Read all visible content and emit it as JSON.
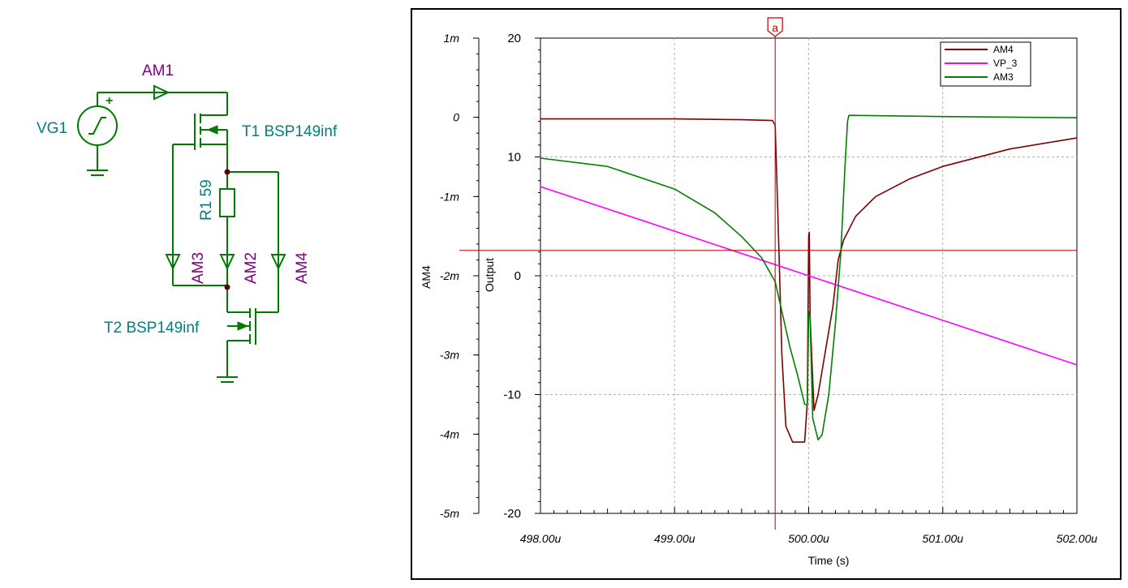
{
  "schematic": {
    "labels": {
      "am1": "AM1",
      "vg1": "VG1",
      "plus": "+",
      "t1": "T1 BSP149inf",
      "r1": "R1 59",
      "am3": "AM3",
      "am2": "AM2",
      "am4": "AM4",
      "t2": "T2 BSP149inf"
    },
    "colors": {
      "wire": "#007a00",
      "meter_label": "#800080",
      "part_label": "#008080"
    }
  },
  "chart_data": {
    "type": "line",
    "xlabel": "Time (s)",
    "x_ticks": [
      "498.00u",
      "499.00u",
      "500.00u",
      "501.00u",
      "502.00u"
    ],
    "x_range_us": [
      498,
      502
    ],
    "left_axis": {
      "label": "AM4",
      "ticks": [
        "1m",
        "0",
        "-1m",
        "-2m",
        "-3m",
        "-4m",
        "-5m"
      ],
      "range": [
        -0.005,
        0.001
      ]
    },
    "right_axis": {
      "label": "Output",
      "ticks": [
        "20",
        "10",
        "0",
        "-10",
        "-20"
      ],
      "range": [
        -20,
        20
      ]
    },
    "cursor": {
      "label": "a",
      "x_us": 499.75,
      "y_AM4": -0.00168
    },
    "grid": true,
    "legend_position": "top-right",
    "series": [
      {
        "name": "AM4",
        "color": "#800000",
        "axis": "left",
        "points": [
          [
            498.0,
            -2e-05
          ],
          [
            499.0,
            -2e-05
          ],
          [
            499.5,
            -3e-05
          ],
          [
            499.73,
            -4e-05
          ],
          [
            499.75,
            -0.0001
          ],
          [
            499.77,
            -0.0012
          ],
          [
            499.8,
            -0.003
          ],
          [
            499.83,
            -0.0039
          ],
          [
            499.88,
            -0.0041
          ],
          [
            499.93,
            -0.0041
          ],
          [
            499.97,
            -0.0041
          ],
          [
            499.99,
            -0.0036
          ],
          [
            500.0,
            -0.0015
          ],
          [
            500.005,
            -0.00145
          ],
          [
            500.01,
            -0.0025
          ],
          [
            500.04,
            -0.0037
          ],
          [
            500.07,
            -0.0035
          ],
          [
            500.12,
            -0.003
          ],
          [
            500.18,
            -0.0024
          ],
          [
            500.22,
            -0.0018
          ],
          [
            500.26,
            -0.00155
          ],
          [
            500.35,
            -0.00125
          ],
          [
            500.5,
            -0.001
          ],
          [
            500.75,
            -0.00078
          ],
          [
            501.0,
            -0.00062
          ],
          [
            501.5,
            -0.0004
          ],
          [
            502.0,
            -0.00026
          ]
        ]
      },
      {
        "name": "VP_3",
        "color": "#ff00ff",
        "axis": "right",
        "points": [
          [
            498.0,
            7.5
          ],
          [
            502.0,
            -7.5
          ]
        ]
      },
      {
        "name": "AM3",
        "color": "#008000",
        "axis": "right",
        "points": [
          [
            498.0,
            9.9
          ],
          [
            498.5,
            9.2
          ],
          [
            499.0,
            7.3
          ],
          [
            499.3,
            5.3
          ],
          [
            499.5,
            3.3
          ],
          [
            499.65,
            1.5
          ],
          [
            499.75,
            -0.5
          ],
          [
            499.8,
            -3.0
          ],
          [
            499.86,
            -6.0
          ],
          [
            499.92,
            -8.5
          ],
          [
            499.97,
            -10.8
          ],
          [
            499.99,
            -10.9
          ],
          [
            500.0,
            -3.0
          ],
          [
            500.01,
            -3.5
          ],
          [
            500.03,
            -12.0
          ],
          [
            500.07,
            -13.8
          ],
          [
            500.1,
            -13.4
          ],
          [
            500.15,
            -10.0
          ],
          [
            500.2,
            -4.0
          ],
          [
            500.24,
            2.0
          ],
          [
            500.27,
            9.0
          ],
          [
            500.29,
            13.0
          ],
          [
            500.3,
            13.5
          ],
          [
            501.0,
            13.4
          ],
          [
            502.0,
            13.3
          ]
        ]
      }
    ]
  }
}
